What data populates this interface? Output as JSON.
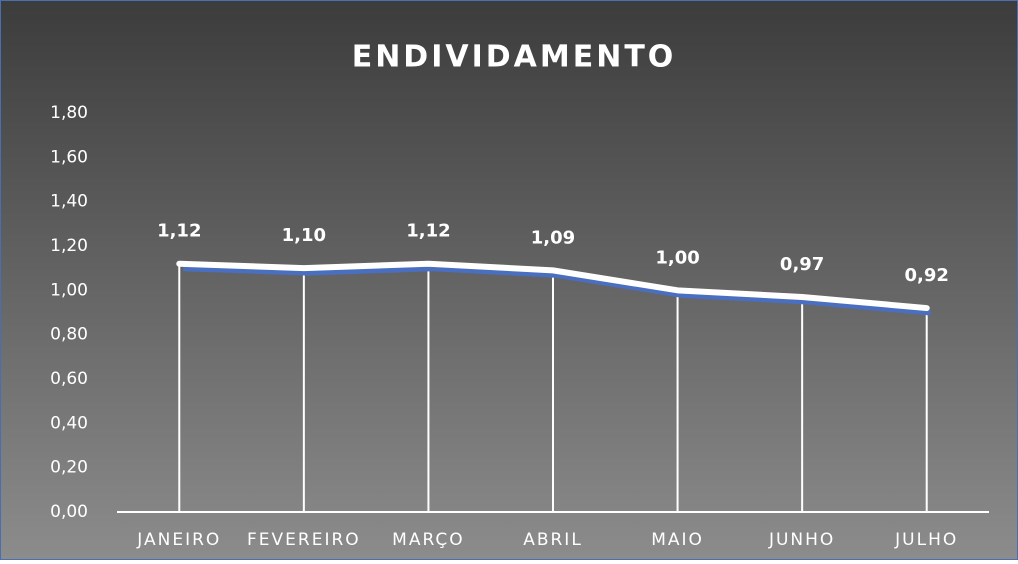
{
  "chart_data": {
    "type": "line",
    "title": "ENDIVIDAMENTO",
    "categories": [
      "JANEIRO",
      "FEVEREIRO",
      "MARÇO",
      "ABRIL",
      "MAIO",
      "JUNHO",
      "JULHO"
    ],
    "values": [
      1.12,
      1.1,
      1.12,
      1.09,
      1.0,
      0.97,
      0.92
    ],
    "value_labels": [
      "1,12",
      "1,10",
      "1,12",
      "1,09",
      "1,00",
      "0,97",
      "0,92"
    ],
    "color": "#ffffff",
    "ylim": [
      0,
      1.8
    ],
    "yticks": [
      {
        "value": 0,
        "label": "0,00"
      },
      {
        "value": 0.2,
        "label": "0,20"
      },
      {
        "value": 0.4,
        "label": "0,40"
      },
      {
        "value": 0.6,
        "label": "0,60"
      },
      {
        "value": 0.8,
        "label": "0,80"
      },
      {
        "value": 1.0,
        "label": "1,00"
      },
      {
        "value": 1.2,
        "label": "1,20"
      },
      {
        "value": 1.4,
        "label": "1,40"
      },
      {
        "value": 1.6,
        "label": "1,60"
      },
      {
        "value": 1.8,
        "label": "1,80"
      }
    ],
    "drop_lines": true
  }
}
